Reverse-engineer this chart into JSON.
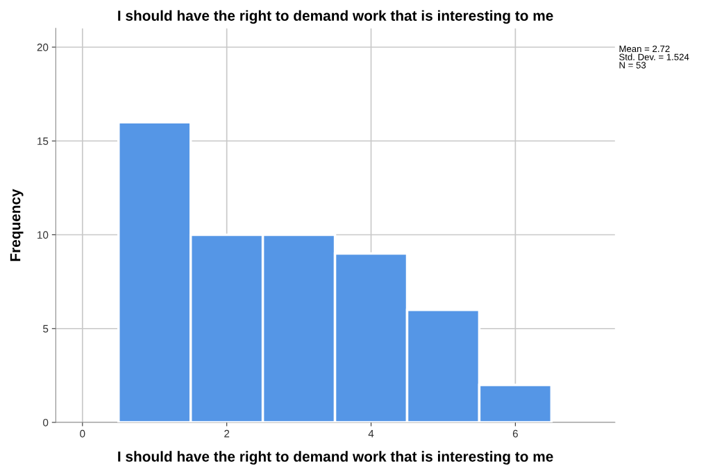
{
  "chart_data": {
    "type": "histogram",
    "title": "I should have the right to demand work that is interesting to me",
    "xlabel": "I should have the right to demand work that is interesting to me",
    "ylabel": "Frequency",
    "bins": [
      0.5,
      1.5,
      2.5,
      3.5,
      4.5,
      5.5,
      6.5
    ],
    "values": [
      16,
      10,
      10,
      9,
      6,
      2
    ],
    "color": "#5596e6",
    "xlim": [
      -0.37,
      7.38
    ],
    "xticks": [
      0,
      2,
      4,
      6
    ],
    "ylim": [
      0,
      21
    ],
    "yticks": [
      0,
      5,
      10,
      15,
      20
    ],
    "grid": true,
    "annotations": [
      "Mean = 2.72\nStd. Dev. = 1.524\nN = 53"
    ]
  }
}
